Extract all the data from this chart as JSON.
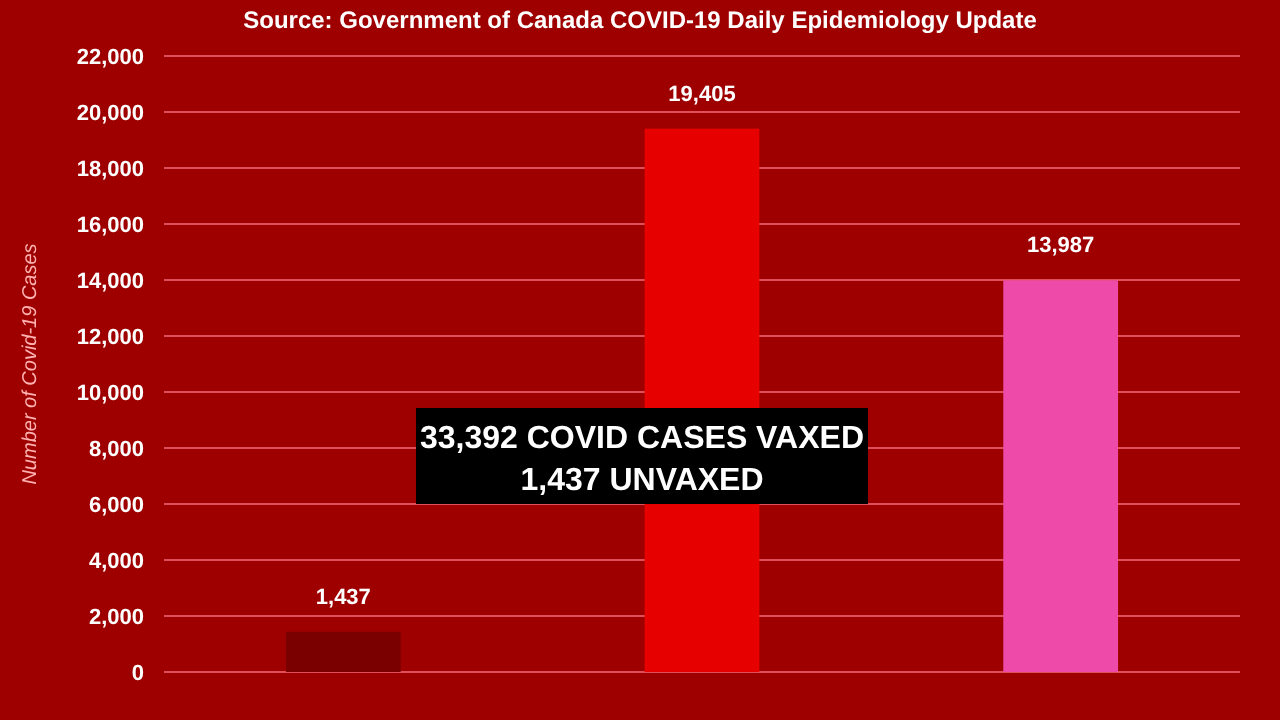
{
  "chart_data": {
    "type": "bar",
    "title": "Source: Government of Canada COVID-19 Daily Epidemiology Update",
    "ylabel": "Number of Covid-19 Cases",
    "categories": [
      null,
      null,
      null
    ],
    "values": [
      1437,
      19405,
      13987
    ],
    "colors": [
      "#7a0000",
      "#e60000",
      "#ee4aaa"
    ],
    "ylim": [
      0,
      22000
    ],
    "yticks": [
      {
        "value": 0,
        "label": "0"
      },
      {
        "value": 2000,
        "label": "2,000"
      },
      {
        "value": 4000,
        "label": "4,000"
      },
      {
        "value": 6000,
        "label": "6,000"
      },
      {
        "value": 8000,
        "label": "8,000"
      },
      {
        "value": 10000,
        "label": "10,000"
      },
      {
        "value": 12000,
        "label": "12,000"
      },
      {
        "value": 14000,
        "label": "14,000"
      },
      {
        "value": 16000,
        "label": "16,000"
      },
      {
        "value": 18000,
        "label": "18,000"
      },
      {
        "value": 20000,
        "label": "20,000"
      },
      {
        "value": 22000,
        "label": "22,000"
      }
    ],
    "grid": "y",
    "value_labels": [
      "1,437",
      "19,405",
      "13,987"
    ],
    "annotations": [
      "33,392 COVID CASES VAXED",
      "1,437 UNVAXED"
    ]
  }
}
